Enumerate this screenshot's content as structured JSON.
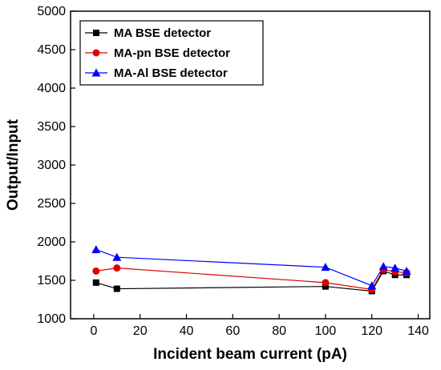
{
  "chart_data": {
    "type": "line",
    "title": "",
    "xlabel": "Incident beam current (pA)",
    "ylabel": "Output/Input",
    "xlim": [
      -10,
      145
    ],
    "ylim": [
      1000,
      5000
    ],
    "xticks": [
      0,
      20,
      40,
      60,
      80,
      100,
      120,
      140
    ],
    "yticks": [
      1000,
      1500,
      2000,
      2500,
      3000,
      3500,
      4000,
      4500,
      5000
    ],
    "grid": false,
    "legend_position": "top-left",
    "series": [
      {
        "name": "MA BSE detector",
        "color": "#000000",
        "marker": "square",
        "x": [
          1,
          10,
          100,
          120,
          125,
          130,
          135
        ],
        "y": [
          1470,
          1390,
          1420,
          1360,
          1620,
          1570,
          1570
        ]
      },
      {
        "name": "MA-pn BSE detector",
        "color": "#e00000",
        "marker": "circle",
        "x": [
          1,
          10,
          100,
          120,
          125,
          130,
          135
        ],
        "y": [
          1620,
          1660,
          1470,
          1380,
          1640,
          1610,
          1600
        ]
      },
      {
        "name": "MA-Al BSE detector",
        "color": "#0000ff",
        "marker": "triangle",
        "x": [
          1,
          10,
          100,
          120,
          125,
          130,
          135
        ],
        "y": [
          1900,
          1800,
          1670,
          1430,
          1680,
          1660,
          1620
        ]
      }
    ]
  }
}
